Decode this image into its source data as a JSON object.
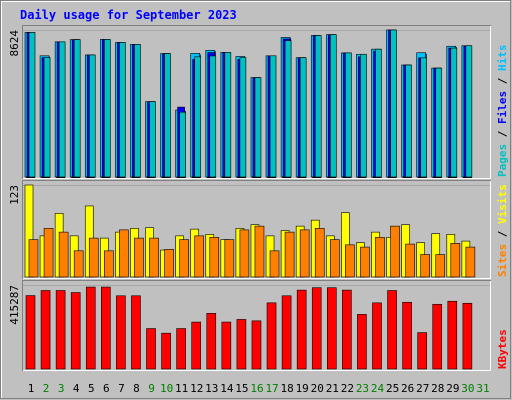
{
  "chart_data": [
    {
      "type": "bar",
      "title": "Daily usage for September 2023",
      "categories": [
        "1",
        "2",
        "3",
        "4",
        "5",
        "6",
        "7",
        "8",
        "9",
        "10",
        "11",
        "12",
        "13",
        "14",
        "15",
        "16",
        "17",
        "18",
        "19",
        "20",
        "21",
        "22",
        "23",
        "24",
        "25",
        "26",
        "27",
        "28",
        "29",
        "30",
        "31"
      ],
      "weekend_days": [
        "2",
        "3",
        "9",
        "10",
        "16",
        "17",
        "23",
        "24",
        "30",
        "31"
      ],
      "ylabel": [
        "Pages",
        "Files",
        "Hits"
      ],
      "ylim": [
        0,
        8624
      ],
      "max_tick_label": "8624",
      "series": [
        {
          "name": "Hits",
          "color": "#00c0ff",
          "values": [
            8480,
            7110,
            7930,
            8060,
            7160,
            8070,
            7890,
            7780,
            4420,
            7240,
            3930,
            7250,
            7430,
            7310,
            7070,
            5830,
            7110,
            8190,
            7000,
            8300,
            8350,
            7280,
            7200,
            7500,
            8624,
            6570,
            7290,
            6390,
            7670,
            7700,
            null
          ]
        },
        {
          "name": "Files",
          "color": "#0000ff",
          "values": [
            8480,
            7000,
            7930,
            8060,
            7160,
            8070,
            7890,
            7780,
            4420,
            7240,
            4100,
            6900,
            7300,
            7310,
            6900,
            5830,
            7110,
            8100,
            7000,
            8300,
            8350,
            7280,
            7050,
            7380,
            8624,
            6570,
            6990,
            6390,
            7560,
            7700,
            null
          ]
        },
        {
          "name": "Pages",
          "color": "#00c0c0",
          "values": [
            8480,
            7000,
            7930,
            8060,
            7160,
            8070,
            7890,
            7780,
            4420,
            7240,
            3800,
            7050,
            7100,
            7310,
            7000,
            5830,
            7110,
            8000,
            7000,
            8300,
            8350,
            7280,
            7200,
            7500,
            8624,
            6570,
            6990,
            6390,
            7560,
            7700,
            null
          ]
        }
      ]
    },
    {
      "type": "bar",
      "ylabel": [
        "Sites",
        "Visits"
      ],
      "ylim": [
        0,
        123
      ],
      "max_tick_label": "123",
      "series": [
        {
          "name": "Visits",
          "color": "#ffff00",
          "values": [
            123,
            55,
            85,
            55,
            95,
            52,
            60,
            65,
            66,
            36,
            55,
            64,
            57,
            50,
            65,
            70,
            55,
            62,
            68,
            76,
            55,
            86,
            46,
            60,
            53,
            70,
            46,
            58,
            57,
            48,
            null
          ]
        },
        {
          "name": "Sites",
          "color": "#ff8000",
          "values": [
            50,
            65,
            60,
            35,
            52,
            35,
            63,
            52,
            52,
            37,
            50,
            55,
            53,
            50,
            63,
            68,
            35,
            60,
            63,
            65,
            50,
            43,
            40,
            53,
            68,
            44,
            30,
            30,
            45,
            40,
            null
          ]
        }
      ]
    },
    {
      "type": "bar",
      "ylabel": [
        "KBytes"
      ],
      "ylim": [
        0,
        415287
      ],
      "max_tick_label": "415287",
      "series": [
        {
          "name": "KBytes",
          "color": "#ff0000",
          "values": [
            363000,
            388000,
            388000,
            378000,
            405000,
            405000,
            362000,
            362000,
            200000,
            177000,
            200000,
            232000,
            275000,
            232000,
            245000,
            238000,
            327000,
            362000,
            390000,
            402000,
            402000,
            390000,
            270000,
            327000,
            388000,
            330000,
            180000,
            320000,
            335000,
            325000,
            null
          ]
        }
      ]
    }
  ]
}
